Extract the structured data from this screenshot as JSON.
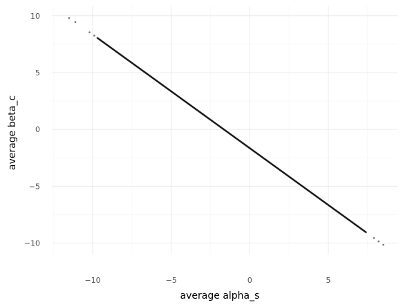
{
  "chart_data": {
    "type": "scatter",
    "title": "",
    "xlabel": "average alpha_s",
    "ylabel": "average beta_c",
    "xlim": [
      -12.6,
      9.4
    ],
    "ylim": [
      -11.0,
      10.9
    ],
    "x_ticks": [
      -10,
      -5,
      0,
      5
    ],
    "y_ticks": [
      -10,
      -5,
      0,
      5,
      10
    ],
    "x_tick_labels": [
      "−10",
      "−5",
      "0",
      "5"
    ],
    "y_tick_labels": [
      "−10",
      "−5",
      "0",
      "5",
      "10"
    ],
    "grid": true,
    "legend": "none",
    "series": [
      {
        "points": [
          [
            -11.5,
            9.8
          ],
          [
            -11.1,
            9.45
          ],
          [
            -10.2,
            8.55
          ],
          [
            -9.9,
            8.25
          ],
          [
            -9.7,
            8.05
          ],
          [
            -9.4,
            7.75
          ],
          [
            -9.0,
            7.35
          ],
          [
            -8.6,
            6.95
          ],
          [
            -8.0,
            6.35
          ],
          [
            -7.0,
            5.35
          ],
          [
            -6.0,
            4.35
          ],
          [
            -5.0,
            3.35
          ],
          [
            -4.0,
            2.35
          ],
          [
            -3.0,
            1.35
          ],
          [
            -2.0,
            0.35
          ],
          [
            -1.0,
            -0.65
          ],
          [
            0.0,
            -1.65
          ],
          [
            1.0,
            -2.65
          ],
          [
            2.0,
            -3.65
          ],
          [
            3.0,
            -4.65
          ],
          [
            4.0,
            -5.65
          ],
          [
            5.0,
            -6.65
          ],
          [
            6.0,
            -7.65
          ],
          [
            6.8,
            -8.45
          ],
          [
            7.4,
            -9.05
          ],
          [
            7.9,
            -9.55
          ],
          [
            8.2,
            -9.85
          ],
          [
            8.5,
            -10.15
          ]
        ]
      }
    ],
    "colors": {
      "background": "#ffffff",
      "grid_major": "#ebebeb",
      "grid_minor": "#f5f5f5",
      "points": "#000000"
    }
  }
}
